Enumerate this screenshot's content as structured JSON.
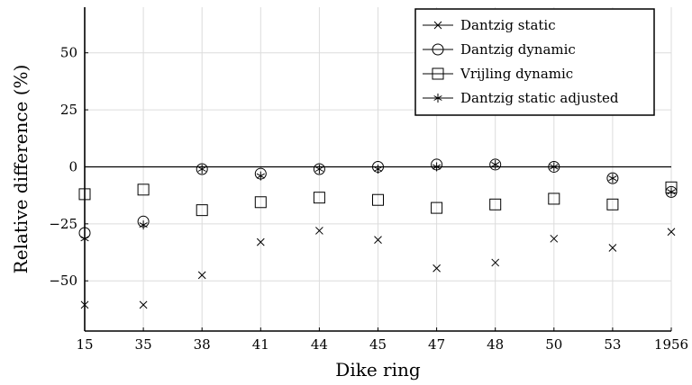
{
  "chart_data": {
    "type": "scatter",
    "xlabel": "Dike ring",
    "ylabel": "Relative difference (%)",
    "categories": [
      "15",
      "35",
      "38",
      "41",
      "44",
      "45",
      "47",
      "48",
      "50",
      "53",
      "1956"
    ],
    "ylim": [
      -72,
      70
    ],
    "yticks": [
      -50,
      -25,
      0,
      25,
      50
    ],
    "yticklabels": [
      "−50",
      "−25",
      "0",
      "25",
      "50"
    ],
    "grid": true,
    "legend_position": "top-right",
    "reference_line_y": 0,
    "series": [
      {
        "name": "Dantzig static",
        "marker": "x",
        "values": [
          -60.5,
          -60.5,
          -47.5,
          -33,
          -28,
          -32,
          -44.5,
          -42,
          -31.5,
          -35.5,
          -28.5
        ]
      },
      {
        "name": "Dantzig dynamic",
        "marker": "circle",
        "values": [
          -29,
          -24,
          -1,
          -3,
          -1,
          0,
          1,
          1,
          0,
          -5,
          -11
        ]
      },
      {
        "name": "Vrijling dynamic",
        "marker": "square",
        "values": [
          -12,
          -10,
          -19,
          -15.5,
          -13.5,
          -14.5,
          -18,
          -16.5,
          -14,
          -16.5,
          -9
        ]
      },
      {
        "name": "Dantzig static adjusted",
        "marker": "asterisk",
        "values": [
          -31.5,
          -25.5,
          -1,
          -4,
          -1,
          -1,
          0,
          1,
          0,
          -5,
          -11
        ]
      }
    ]
  }
}
